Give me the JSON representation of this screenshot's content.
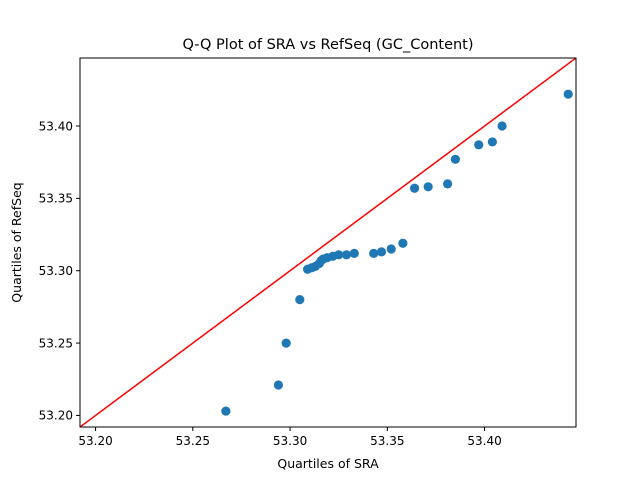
{
  "chart_data": {
    "type": "scatter",
    "title": "Q-Q Plot of SRA vs RefSeq (GC_Content)",
    "xlabel": "Quartiles of SRA",
    "ylabel": "Quartiles of RefSeq",
    "xlim": [
      53.192,
      53.447
    ],
    "ylim": [
      53.192,
      53.447
    ],
    "xticks": [
      "53.20",
      "53.25",
      "53.30",
      "53.35",
      "53.40"
    ],
    "yticks": [
      "53.20",
      "53.25",
      "53.30",
      "53.35",
      "53.40"
    ],
    "grid": false,
    "legend": "none",
    "point_color": "#1f77b4",
    "reference_line_color": "#ff0000",
    "reference_line": [
      [
        53.192,
        53.192
      ],
      [
        53.447,
        53.447
      ]
    ],
    "points": [
      [
        53.267,
        53.203
      ],
      [
        53.294,
        53.221
      ],
      [
        53.298,
        53.25
      ],
      [
        53.305,
        53.28
      ],
      [
        53.309,
        53.301
      ],
      [
        53.311,
        53.302
      ],
      [
        53.313,
        53.303
      ],
      [
        53.315,
        53.305
      ],
      [
        53.316,
        53.307
      ],
      [
        53.317,
        53.308
      ],
      [
        53.319,
        53.309
      ],
      [
        53.322,
        53.31
      ],
      [
        53.325,
        53.311
      ],
      [
        53.329,
        53.311
      ],
      [
        53.333,
        53.312
      ],
      [
        53.343,
        53.312
      ],
      [
        53.347,
        53.313
      ],
      [
        53.352,
        53.315
      ],
      [
        53.358,
        53.319
      ],
      [
        53.364,
        53.357
      ],
      [
        53.371,
        53.358
      ],
      [
        53.381,
        53.36
      ],
      [
        53.385,
        53.377
      ],
      [
        53.397,
        53.387
      ],
      [
        53.404,
        53.389
      ],
      [
        53.409,
        53.4
      ],
      [
        53.443,
        53.422
      ]
    ]
  }
}
